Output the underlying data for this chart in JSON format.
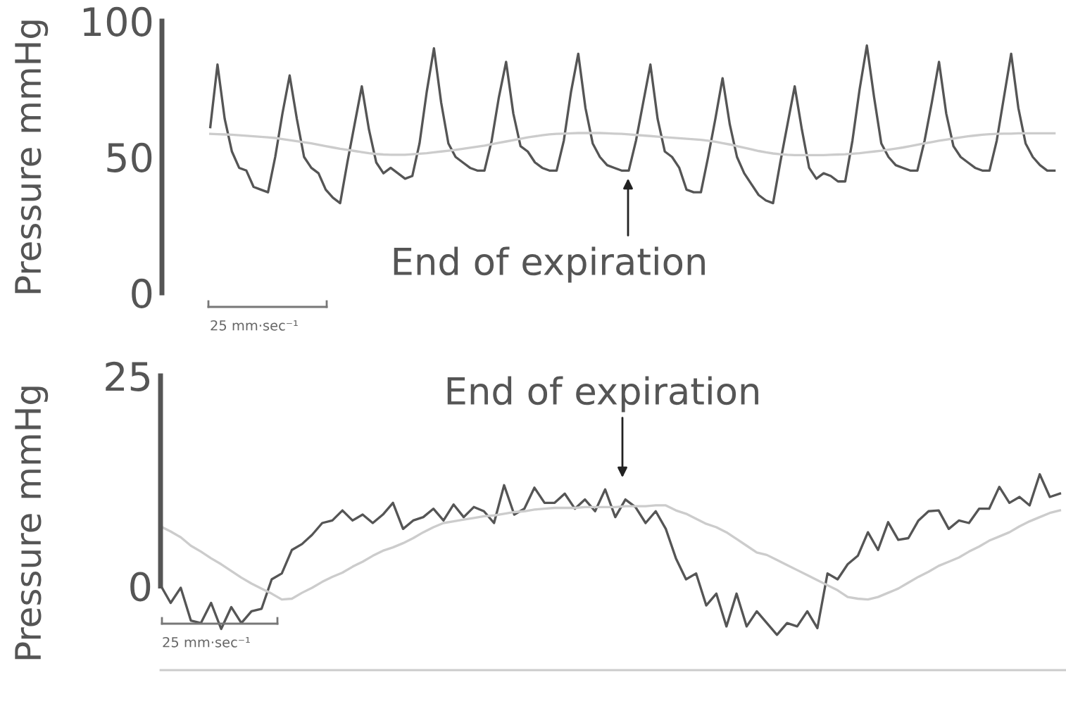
{
  "chart_data": [
    {
      "type": "line",
      "ylabel": "Pressure mmHg",
      "ylim": [
        0,
        100
      ],
      "yticks": [
        0,
        50,
        100
      ],
      "tick_labels": "y",
      "grid": false,
      "annotations": [
        "End of expiration",
        "25 mm·sec⁻¹"
      ],
      "categories": [
        null,
        null,
        null,
        null,
        null,
        null,
        null,
        null,
        null,
        null,
        null,
        null,
        null,
        null,
        null,
        null,
        null,
        null,
        null,
        null,
        null,
        null,
        null,
        null,
        null,
        null,
        null,
        null,
        null,
        null,
        null,
        null,
        null,
        null,
        null,
        null,
        null,
        null,
        null,
        null,
        null,
        null,
        null,
        null,
        null,
        null,
        null,
        null,
        null,
        null,
        null,
        null,
        null,
        null,
        null,
        null,
        null,
        null,
        null,
        null,
        null,
        null,
        null,
        null,
        null,
        null,
        null,
        null,
        null,
        null,
        null,
        null,
        null,
        null,
        null,
        null,
        null,
        null,
        null,
        null,
        null,
        null,
        null,
        null,
        null,
        null,
        null,
        null,
        null,
        null,
        null,
        null,
        null,
        null,
        null,
        null,
        null,
        null,
        null,
        null,
        null,
        null,
        null,
        null,
        null,
        null,
        null,
        null,
        null,
        null,
        null,
        null,
        null,
        null,
        null,
        null,
        null,
        null
      ],
      "series": [
        {
          "color": "#555555",
          "values": [
            61,
            84,
            64,
            52,
            46,
            45,
            39,
            38,
            37,
            50,
            66,
            80,
            64,
            50,
            46,
            44,
            38,
            35,
            33,
            48,
            62,
            76,
            60,
            48,
            44,
            46,
            44,
            42,
            43,
            55,
            74,
            90,
            70,
            55,
            50,
            48,
            46,
            45,
            45,
            56,
            72,
            85,
            66,
            54,
            52,
            48,
            46,
            45,
            45,
            56,
            74,
            88,
            68,
            55,
            50,
            47,
            46,
            45,
            45,
            56,
            70,
            84,
            64,
            52,
            50,
            46,
            38,
            37,
            37,
            50,
            64,
            79,
            62,
            50,
            44,
            40,
            36,
            34,
            33,
            48,
            62,
            76,
            60,
            46,
            42,
            44,
            43,
            41,
            41,
            56,
            75,
            91,
            72,
            55,
            50,
            47,
            46,
            45,
            45,
            56,
            70,
            85,
            66,
            54,
            50,
            48,
            46,
            45,
            45,
            56,
            72,
            88,
            68,
            55,
            50,
            47,
            45,
            45
          ]
        },
        {
          "color": "#cccccc",
          "values": [
            58.5,
            58.4,
            58.3,
            58.2,
            58,
            57.8,
            57.6,
            57.4,
            57.2,
            57,
            56.6,
            56.2,
            55.8,
            55.4,
            55,
            54.5,
            54,
            53.5,
            53,
            52.6,
            52.2,
            51.8,
            51.4,
            51.1,
            50.9,
            50.8,
            50.8,
            50.8,
            51,
            51.2,
            51.4,
            51.7,
            52,
            52.3,
            52.6,
            53,
            53.4,
            53.8,
            54.2,
            54.7,
            55.2,
            55.7,
            56.2,
            56.7,
            57.2,
            57.6,
            58,
            58.3,
            58.5,
            58.6,
            58.7,
            58.8,
            58.8,
            58.8,
            58.8,
            58.7,
            58.6,
            58.5,
            58.3,
            58.1,
            57.9,
            57.7,
            57.5,
            57.3,
            57.1,
            56.9,
            56.7,
            56.5,
            56.3,
            56,
            55.6,
            55.1,
            54.6,
            54,
            53.4,
            52.8,
            52.2,
            51.7,
            51.3,
            51,
            50.8,
            50.7,
            50.7,
            50.7,
            50.7,
            50.7,
            50.8,
            50.9,
            51,
            51.2,
            51.4,
            51.7,
            52,
            52.3,
            52.7,
            53.1,
            53.5,
            54,
            54.5,
            55,
            55.5,
            56,
            56.4,
            56.8,
            57.2,
            57.6,
            57.9,
            58.2,
            58.4,
            58.5,
            58.6,
            58.6,
            58.7,
            58.7,
            58.7,
            58.7,
            58.7,
            58.7
          ]
        }
      ]
    },
    {
      "type": "line",
      "ylabel": "Pressure mmHg",
      "ylim": [
        -10,
        25
      ],
      "yticks": [
        0,
        25
      ],
      "tick_labels": "y",
      "grid": false,
      "annotations": [
        "End of expiration",
        "25 mm·sec⁻¹"
      ],
      "categories": [
        null,
        null,
        null,
        null,
        null,
        null,
        null,
        null,
        null,
        null,
        null,
        null,
        null,
        null,
        null,
        null,
        null,
        null,
        null,
        null,
        null,
        null,
        null,
        null,
        null,
        null,
        null,
        null,
        null,
        null,
        null,
        null,
        null,
        null,
        null,
        null,
        null,
        null,
        null,
        null,
        null,
        null,
        null,
        null,
        null,
        null,
        null,
        null,
        null,
        null,
        null,
        null,
        null,
        null,
        null,
        null,
        null,
        null,
        null,
        null,
        null,
        null,
        null,
        null,
        null,
        null,
        null,
        null,
        null,
        null,
        null,
        null,
        null,
        null,
        null,
        null,
        null,
        null,
        null,
        null,
        null,
        null,
        null,
        null,
        null,
        null,
        null,
        null,
        null,
        null
      ],
      "series": [
        {
          "color": "#555555",
          "values": [
            0.1,
            -2.0,
            -0.2,
            -4.1,
            -4.4,
            -2.0,
            -5.1,
            -2.5,
            -4.4,
            -3.0,
            -2.7,
            0.8,
            1.5,
            4.3,
            5.0,
            6.1,
            7.5,
            7.8,
            9.0,
            7.8,
            8.5,
            7.5,
            8.5,
            9.9,
            6.8,
            7.8,
            8.2,
            9.2,
            7.8,
            9.7,
            8.2,
            9.4,
            8.9,
            7.5,
            12.0,
            8.5,
            9.2,
            11.7,
            9.9,
            9.9,
            11.0,
            9.2,
            10.3,
            8.9,
            11.5,
            8.2,
            10.3,
            9.4,
            7.5,
            8.9,
            6.8,
            3.3,
            0.8,
            1.5,
            -2.3,
            -0.9,
            -4.8,
            -0.9,
            -4.8,
            -3.0,
            -4.4,
            -5.8,
            -4.4,
            -4.8,
            -3.0,
            -5.0,
            1.5,
            0.8,
            2.6,
            3.6,
            6.4,
            4.3,
            7.6,
            5.5,
            5.7,
            7.8,
            8.9,
            9.0,
            6.8,
            7.8,
            7.5,
            9.2,
            9.2,
            11.8,
            9.9,
            10.6,
            9.6,
            13.3,
            10.6,
            11.0
          ]
        },
        {
          "color": "#cccccc",
          "values": [
            7.1,
            6.5,
            5.8,
            4.8,
            4.1,
            3.3,
            2.6,
            1.8,
            1.0,
            0.3,
            -0.3,
            -0.9,
            -1.6,
            -1.5,
            -0.8,
            -0.2,
            0.5,
            1.1,
            1.6,
            2.3,
            2.9,
            3.6,
            4.2,
            4.6,
            5.1,
            5.7,
            6.4,
            7.0,
            7.5,
            7.7,
            7.9,
            8.1,
            8.3,
            8.4,
            8.6,
            8.8,
            8.9,
            9.1,
            9.2,
            9.3,
            9.3,
            9.3,
            9.4,
            9.4,
            9.4,
            9.4,
            9.5,
            9.5,
            9.5,
            9.6,
            9.6,
            9.0,
            8.6,
            8.0,
            7.4,
            7.0,
            6.4,
            5.6,
            4.8,
            4.0,
            3.7,
            3.1,
            2.5,
            1.9,
            1.3,
            0.7,
            0.1,
            -0.5,
            -1.3,
            -1.5,
            -1.6,
            -1.3,
            -0.8,
            -0.3,
            0.4,
            1.1,
            1.7,
            2.4,
            2.9,
            3.4,
            4.1,
            4.7,
            5.4,
            5.9,
            6.4,
            7.1,
            7.7,
            8.2,
            8.7,
            9.0
          ]
        }
      ]
    }
  ]
}
